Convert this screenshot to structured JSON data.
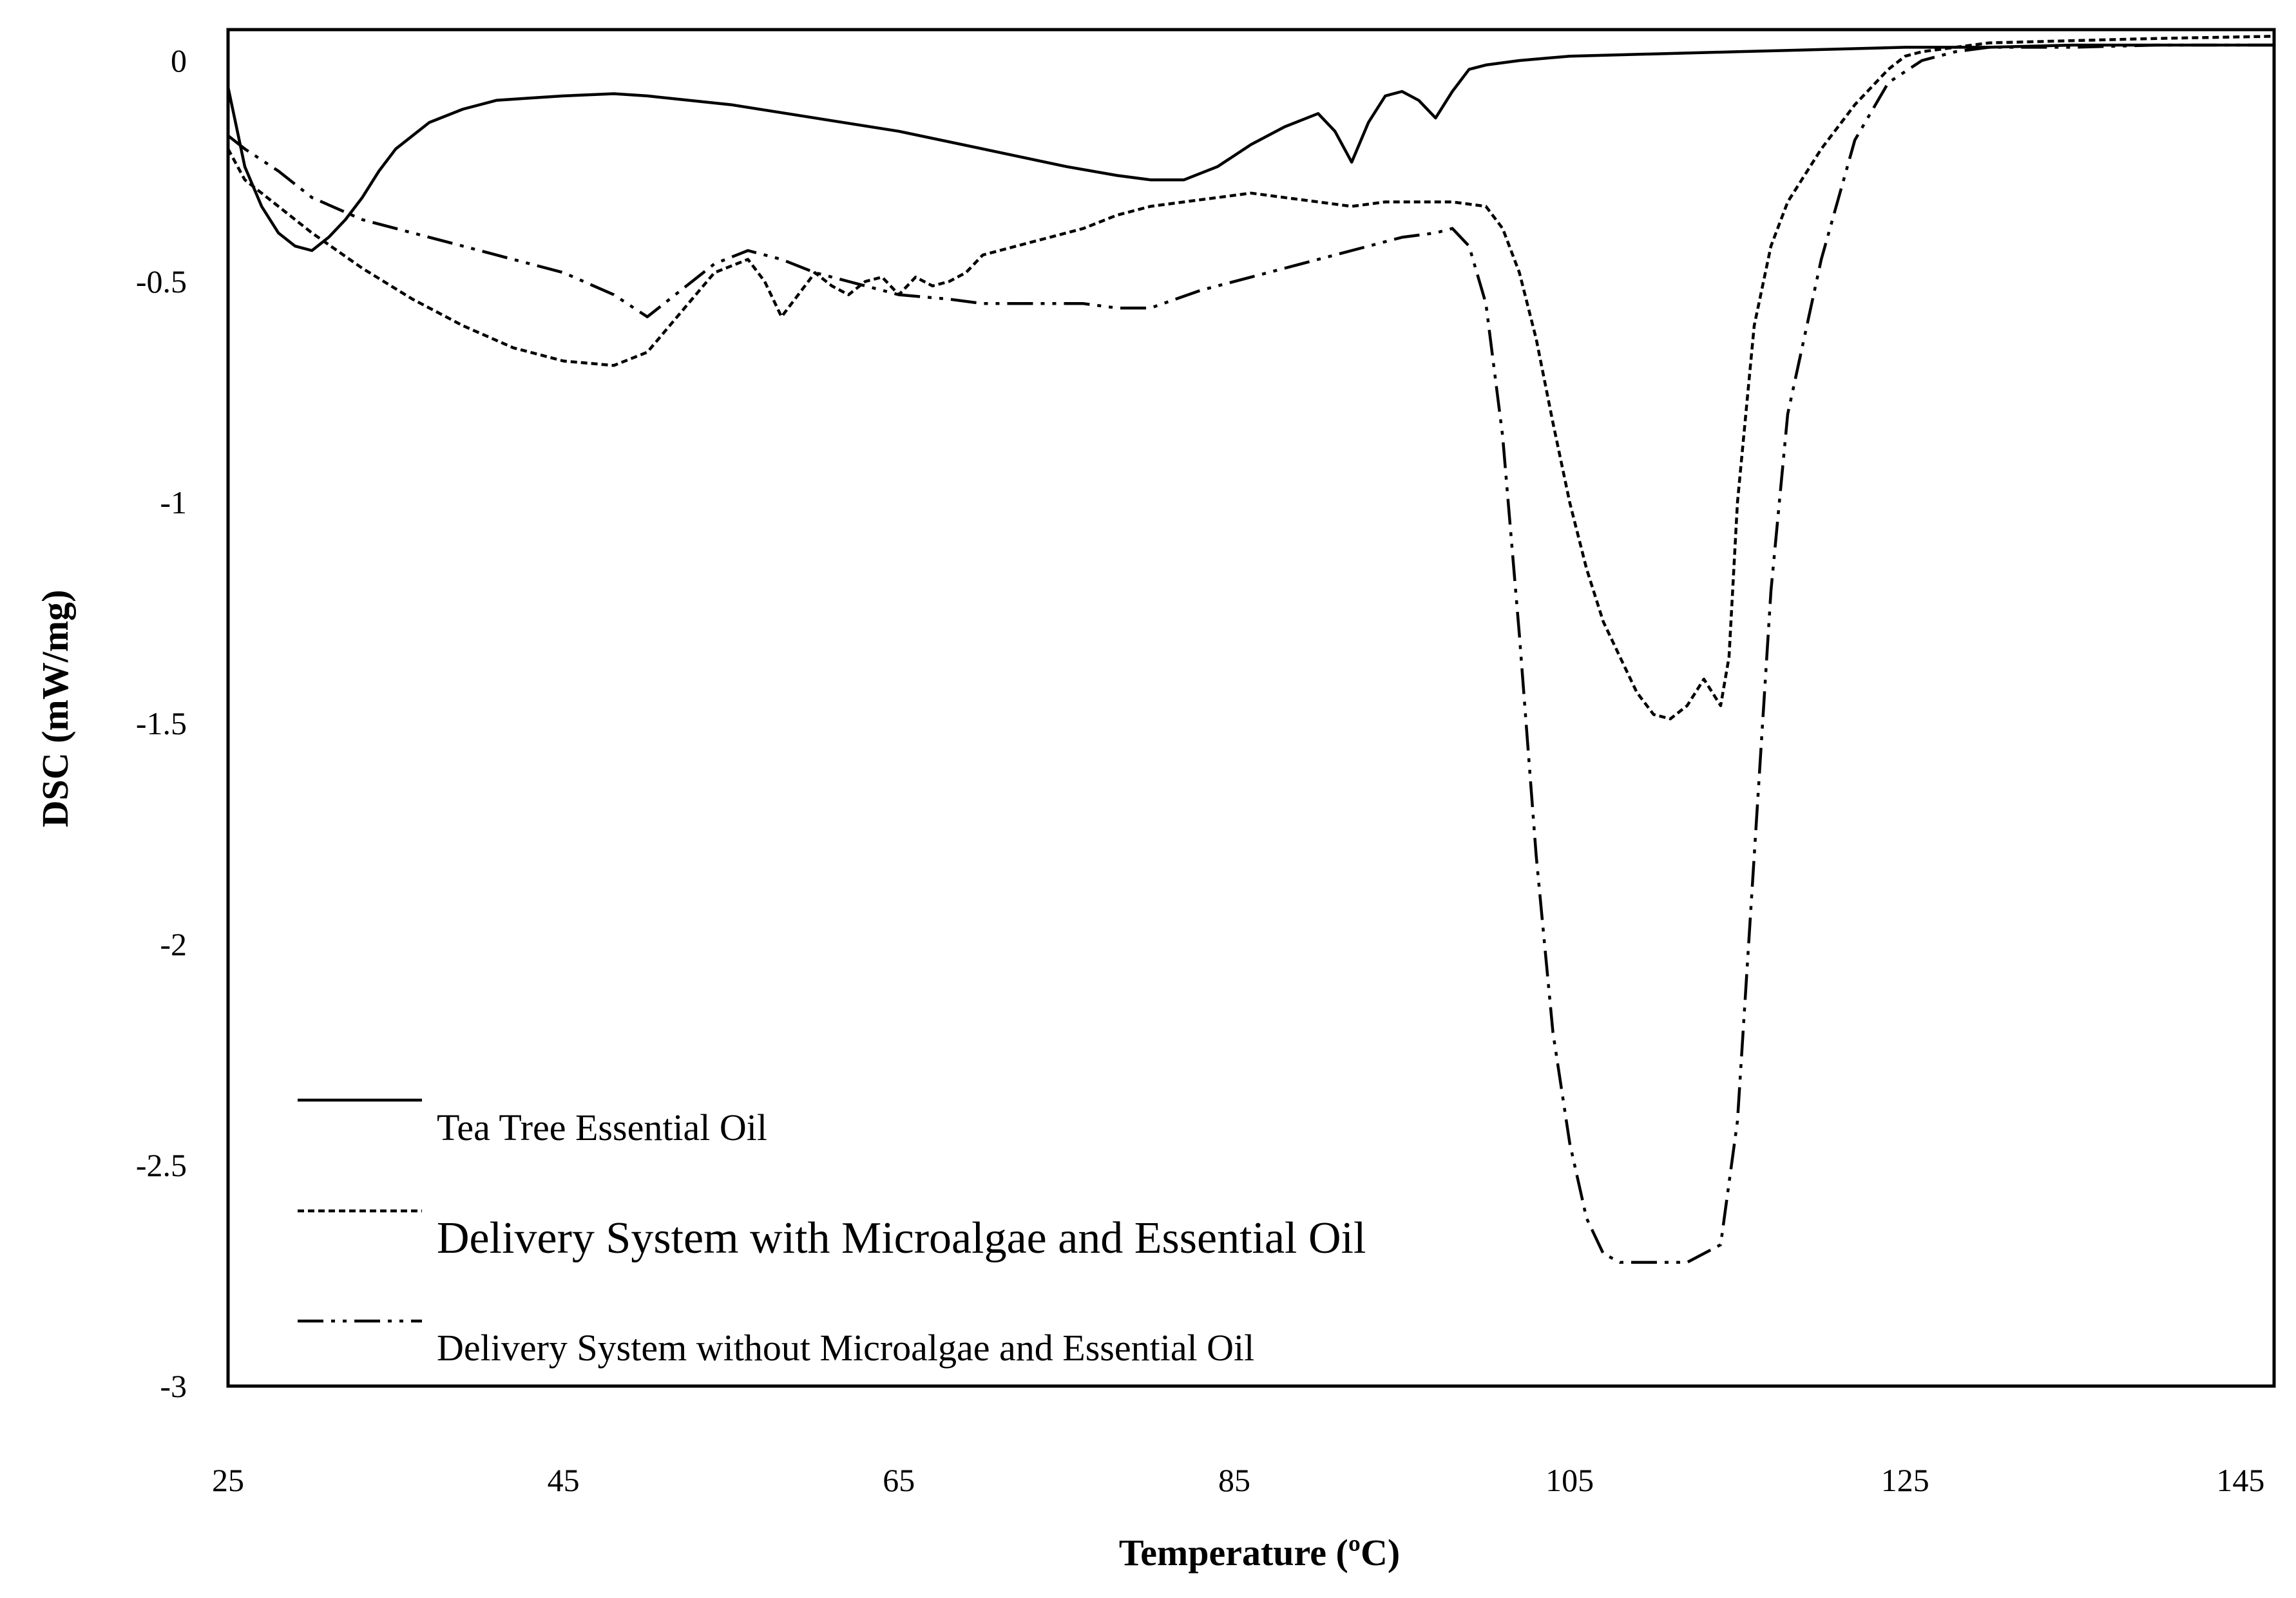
{
  "chart_data": {
    "type": "line",
    "title": "",
    "xlabel": "Temperature (ºC)",
    "ylabel": "DSC (mW/mg)",
    "xlim": [
      25,
      147
    ],
    "ylim": [
      -3,
      0.07
    ],
    "xticks": [
      25,
      45,
      65,
      85,
      105,
      125,
      145
    ],
    "yticks": [
      0,
      -0.5,
      -1,
      -1.5,
      -2,
      -2.5,
      -3
    ],
    "xtick_labels": [
      "25",
      "45",
      "65",
      "85",
      "105",
      "125",
      "145"
    ],
    "ytick_labels": [
      "0",
      "-0.5",
      "-1",
      "-1.5",
      "-2",
      "-2.5",
      "-3"
    ],
    "grid": false,
    "legend_position": "bottom-left",
    "series": [
      {
        "name": "Tea Tree Essential Oil",
        "style": "solid",
        "x": [
          25,
          25.5,
          26,
          27,
          28,
          29,
          30,
          31,
          32,
          33,
          34,
          35,
          37,
          39,
          41,
          43,
          45,
          48,
          50,
          55,
          60,
          65,
          70,
          75,
          78,
          80,
          82,
          84,
          86,
          88,
          90,
          91,
          92,
          93,
          94,
          95,
          96,
          97,
          98,
          99,
          100,
          102,
          105,
          110,
          115,
          120,
          125,
          130,
          135,
          140,
          147
        ],
        "y": [
          -0.06,
          -0.15,
          -0.24,
          -0.33,
          -0.39,
          -0.42,
          -0.43,
          -0.4,
          -0.36,
          -0.31,
          -0.25,
          -0.2,
          -0.14,
          -0.11,
          -0.09,
          -0.085,
          -0.08,
          -0.075,
          -0.08,
          -0.1,
          -0.13,
          -0.16,
          -0.2,
          -0.24,
          -0.26,
          -0.27,
          -0.27,
          -0.24,
          -0.19,
          -0.15,
          -0.12,
          -0.16,
          -0.23,
          -0.14,
          -0.08,
          -0.07,
          -0.09,
          -0.13,
          -0.07,
          -0.02,
          -0.01,
          0.0,
          0.01,
          0.015,
          0.02,
          0.025,
          0.03,
          0.03,
          0.035,
          0.035,
          0.035
        ]
      },
      {
        "name": "Delivery System with Microalgae and Essential Oil",
        "style": "dotted",
        "x": [
          25,
          26,
          28,
          30,
          33,
          36,
          39,
          42,
          45,
          48,
          50,
          52,
          54,
          56,
          57,
          58,
          59,
          60,
          61,
          62,
          63,
          64,
          65,
          66,
          67,
          68,
          69,
          70,
          72,
          74,
          76,
          78,
          80,
          82,
          84,
          86,
          88,
          90,
          92,
          94,
          96,
          98,
          100,
          101,
          102,
          103,
          104,
          105,
          106,
          107,
          108,
          109,
          110,
          111,
          112,
          113,
          114,
          114.5,
          115,
          116,
          117,
          118,
          120,
          122,
          124,
          125,
          126,
          128,
          130,
          135,
          140,
          147
        ],
        "y": [
          -0.2,
          -0.27,
          -0.33,
          -0.39,
          -0.47,
          -0.54,
          -0.6,
          -0.65,
          -0.68,
          -0.69,
          -0.66,
          -0.57,
          -0.48,
          -0.45,
          -0.5,
          -0.58,
          -0.53,
          -0.48,
          -0.51,
          -0.53,
          -0.5,
          -0.49,
          -0.53,
          -0.49,
          -0.51,
          -0.5,
          -0.48,
          -0.44,
          -0.42,
          -0.4,
          -0.38,
          -0.35,
          -0.33,
          -0.32,
          -0.31,
          -0.3,
          -0.31,
          -0.32,
          -0.33,
          -0.32,
          -0.32,
          -0.32,
          -0.33,
          -0.38,
          -0.48,
          -0.63,
          -0.82,
          -1.0,
          -1.15,
          -1.27,
          -1.35,
          -1.43,
          -1.48,
          -1.49,
          -1.46,
          -1.4,
          -1.46,
          -1.35,
          -1.0,
          -0.6,
          -0.42,
          -0.32,
          -0.2,
          -0.1,
          -0.02,
          0.01,
          0.02,
          0.03,
          0.04,
          0.045,
          0.05,
          0.055
        ]
      },
      {
        "name": "Delivery System without Microalgae and Essential Oil",
        "style": "dash-dot",
        "x": [
          25,
          26,
          28,
          30,
          33,
          36,
          39,
          42,
          45,
          48,
          50,
          52,
          54,
          56,
          58,
          60,
          62,
          65,
          68,
          70,
          73,
          76,
          78,
          80,
          83,
          86,
          89,
          92,
          95,
          97,
          98,
          99,
          100,
          101,
          102,
          103,
          104,
          105,
          106,
          107,
          108,
          109,
          110,
          112,
          114,
          115,
          116,
          117,
          118,
          120,
          122,
          124,
          126,
          128,
          130,
          135,
          140,
          147
        ],
        "y": [
          -0.17,
          -0.2,
          -0.25,
          -0.31,
          -0.36,
          -0.39,
          -0.42,
          -0.45,
          -0.48,
          -0.53,
          -0.58,
          -0.52,
          -0.46,
          -0.43,
          -0.45,
          -0.48,
          -0.5,
          -0.53,
          -0.54,
          -0.55,
          -0.55,
          -0.55,
          -0.56,
          -0.56,
          -0.52,
          -0.49,
          -0.46,
          -0.43,
          -0.4,
          -0.39,
          -0.38,
          -0.42,
          -0.55,
          -0.85,
          -1.3,
          -1.8,
          -2.2,
          -2.45,
          -2.62,
          -2.7,
          -2.72,
          -2.72,
          -2.72,
          -2.72,
          -2.68,
          -2.4,
          -1.8,
          -1.2,
          -0.8,
          -0.45,
          -0.18,
          -0.05,
          0.0,
          0.02,
          0.03,
          0.03,
          0.035,
          0.035
        ]
      }
    ]
  }
}
